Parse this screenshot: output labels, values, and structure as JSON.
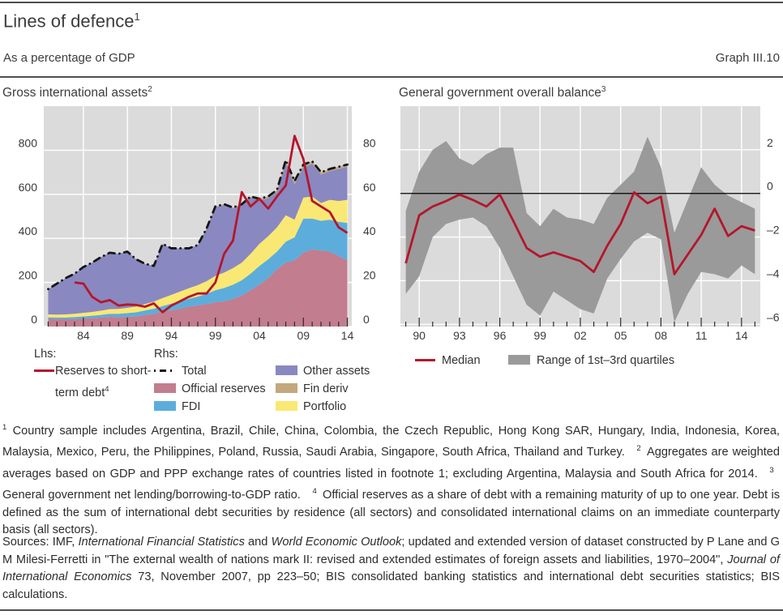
{
  "header": {
    "title": "Lines of defence",
    "title_sup": "1",
    "subtitle": "As a percentage of GDP",
    "graph_label": "Graph III.10"
  },
  "style_colors": {
    "plot_bg": "#dbdbdb",
    "gridline": "#ffffff",
    "tick": "#2a2a2a",
    "rule": "#4f4f4f",
    "text": "#3a3a3a"
  },
  "legend_left": {
    "lhs_header": "Lhs:",
    "lhs_item": {
      "label": "Reserves to short-term debt",
      "sup": "4"
    },
    "rhs_header": "Rhs:",
    "col1": [
      {
        "label": "Total"
      },
      {
        "label": "Official reserves"
      },
      {
        "label": "FDI"
      }
    ],
    "col2": [
      {
        "label": "Other assets"
      },
      {
        "label": "Fin deriv"
      },
      {
        "label": "Portfolio"
      }
    ]
  },
  "legend_right": {
    "median_label": "Median",
    "band_label": "Range of 1st–3rd quartiles"
  },
  "footnotes": {
    "segments": [
      {
        "t": "1",
        "sup": true
      },
      {
        "t": " Country sample includes Argentina, Brazil, Chile, China, Colombia, the Czech Republic, Hong Kong SAR, Hungary, India, Indonesia, Korea, Malaysia, Mexico, Peru, the Philippines, Poland, Russia, Saudi Arabia, Singapore, South Africa, Thailand and Turkey. "
      },
      {
        "t": "2",
        "sup": true
      },
      {
        "t": " Aggregates are weighted averages based on GDP and PPP exchange rates of countries listed in footnote 1; excluding Argentina, Malaysia and South Africa for 2014. "
      },
      {
        "t": "3",
        "sup": true
      },
      {
        "t": " General government net lending/borrowing-to-GDP ratio. "
      },
      {
        "t": "4",
        "sup": true
      },
      {
        "t": " Official reserves as a share of debt with a remaining maturity of up to one year. Debt is defined as the sum of international debt securities by residence (all sectors) and consolidated international claims on an immediate counterparty basis (all sectors)."
      }
    ]
  },
  "sources": {
    "segments": [
      {
        "t": "Sources: IMF, "
      },
      {
        "t": "International Financial Statistics",
        "i": true
      },
      {
        "t": " and "
      },
      {
        "t": "World Economic Outlook",
        "i": true
      },
      {
        "t": "; updated and extended version of dataset constructed by P Lane and G M Milesi-Ferretti in \"The external wealth of nations mark II: revised and extended estimates of foreign assets and liabilities, 1970–2004\", "
      },
      {
        "t": "Journal of International Economics",
        "i": true
      },
      {
        "t": " 73, November 2007, pp 223–50; BIS consolidated banking statistics and international debt securities statistics; BIS calculations."
      }
    ]
  },
  "chart_data": [
    {
      "type": "area",
      "title": "Gross international assets",
      "title_sup": "2",
      "stacked": true,
      "years": [
        1980,
        1981,
        1982,
        1983,
        1984,
        1985,
        1986,
        1987,
        1988,
        1989,
        1990,
        1991,
        1992,
        1993,
        1994,
        1995,
        1996,
        1997,
        1998,
        1999,
        2000,
        2001,
        2002,
        2003,
        2004,
        2005,
        2006,
        2007,
        2008,
        2009,
        2010,
        2011,
        2012,
        2013,
        2014
      ],
      "series": [
        {
          "name": "Official reserves",
          "color": "#c27d8f",
          "axis": "rhs",
          "values": [
            3.5,
            3.4,
            3.3,
            3.4,
            3.6,
            3.8,
            4.1,
            4.4,
            4.3,
            4.4,
            4.6,
            5.2,
            5.8,
            6.6,
            7.4,
            8.2,
            9,
            9.6,
            10.2,
            11,
            11.5,
            12.5,
            14,
            16.5,
            19,
            22,
            26,
            29,
            30,
            33.5,
            35,
            34.5,
            34,
            32,
            30
          ]
        },
        {
          "name": "FDI",
          "color": "#5caddc",
          "axis": "rhs",
          "values": [
            0.7,
            0.7,
            0.8,
            0.9,
            1,
            1.1,
            1.2,
            1.4,
            1.5,
            1.7,
            1.9,
            2.1,
            2.3,
            2.7,
            3,
            3.3,
            3.6,
            4,
            4.6,
            5.5,
            6,
            6.5,
            7,
            7.5,
            8.5,
            8.5,
            8,
            9.5,
            10.5,
            15.5,
            14,
            13.5,
            14.5,
            15.5,
            17
          ]
        },
        {
          "name": "Portfolio",
          "color": "#fae874",
          "axis": "rhs",
          "values": [
            1.3,
            1.3,
            1.4,
            1.5,
            1.6,
            1.7,
            1.9,
            2.1,
            2.2,
            2.4,
            2.6,
            2.9,
            3.2,
            3.6,
            4,
            4.4,
            4.8,
            5.2,
            5.8,
            6.5,
            7,
            7.5,
            8,
            9,
            10,
            10.5,
            11,
            12,
            8,
            9.5,
            10,
            8,
            9,
            9.5,
            10.5
          ]
        },
        {
          "name": "Other assets",
          "color": "#8a88c0",
          "axis": "rhs",
          "values": [
            11.5,
            14.1,
            16.5,
            18.2,
            20.8,
            22.4,
            24.3,
            25.6,
            25,
            25.5,
            21.4,
            18.3,
            16.2,
            24.6,
            21.1,
            19.6,
            18.1,
            18.2,
            23.7,
            31.2,
            30.6,
            27.1,
            26,
            25.5,
            19.9,
            17.2,
            16,
            23.5,
            16,
            13.8,
            14.8,
            13,
            13,
            14.5,
            15
          ]
        },
        {
          "name": "Fin deriv",
          "color": "#c2a87c",
          "axis": "rhs",
          "values": [
            0,
            0,
            0,
            0,
            0,
            0,
            0,
            0,
            0,
            0,
            0,
            0,
            0,
            0,
            0,
            0,
            0,
            0,
            0.2,
            0.3,
            0.4,
            0.4,
            0.5,
            0.5,
            0.6,
            0.8,
            1,
            1.5,
            1.5,
            1.2,
            1.2,
            1,
            1,
            1,
            1
          ]
        }
      ],
      "total": {
        "name": "Total",
        "style": "dashed",
        "color": "#161616",
        "axis": "rhs",
        "values": [
          17,
          19.5,
          22,
          24,
          27,
          29,
          31.5,
          33.5,
          33,
          34,
          30.5,
          28.5,
          27.5,
          37.5,
          35.5,
          35.5,
          35.5,
          37,
          44.5,
          54.5,
          55.5,
          54,
          55.5,
          59,
          58,
          59,
          62,
          75.5,
          66,
          73.5,
          75,
          70,
          71.5,
          72.5,
          73.5
        ]
      },
      "line": {
        "name": "Reserves to short-term debt",
        "sup": "4",
        "color": "#b4162c",
        "axis": "lhs",
        "years": [
          1983,
          1984,
          1985,
          1986,
          1987,
          1988,
          1989,
          1990,
          1991,
          1992,
          1993,
          1994,
          1995,
          1996,
          1997,
          1998,
          1999,
          2000,
          2001,
          2002,
          2003,
          2004,
          2005,
          2006,
          2007,
          2008,
          2009,
          2010,
          2011,
          2012,
          2013,
          2014
        ],
        "values": [
          200,
          195,
          135,
          110,
          120,
          95,
          100,
          98,
          90,
          105,
          65,
          95,
          115,
          135,
          150,
          150,
          200,
          330,
          390,
          610,
          545,
          580,
          535,
          590,
          640,
          865,
          760,
          570,
          545,
          520,
          450,
          425
        ]
      },
      "axes": {
        "lhs": {
          "tick_values": [
            0,
            200,
            400,
            600,
            800
          ],
          "tick_labels": [
            "0",
            "200",
            "400",
            "600",
            "800"
          ],
          "range": [
            0,
            1000
          ]
        },
        "rhs": {
          "tick_values": [
            0,
            20,
            40,
            60,
            80
          ],
          "tick_labels": [
            "0",
            "20",
            "40",
            "60",
            "80"
          ],
          "range": [
            0,
            100
          ]
        },
        "x": {
          "range": [
            1979.5,
            2014.5
          ],
          "labeled_years": [
            1984,
            1989,
            1994,
            1999,
            2004,
            2009,
            2014
          ],
          "tick_labels": [
            "84",
            "89",
            "94",
            "99",
            "04",
            "09",
            "14"
          ]
        }
      },
      "grid": "on"
    },
    {
      "type": "band-line",
      "title": "General government overall balance",
      "title_sup": "3",
      "years": [
        1989,
        1990,
        1991,
        1992,
        1993,
        1994,
        1995,
        1996,
        1997,
        1998,
        1999,
        2000,
        2001,
        2002,
        2003,
        2004,
        2005,
        2006,
        2007,
        2008,
        2009,
        2010,
        2011,
        2012,
        2013,
        2014,
        2015
      ],
      "median": [
        -3.2,
        -1,
        -0.6,
        -0.35,
        -0.05,
        -0.3,
        -0.6,
        -0.05,
        -1.25,
        -2.5,
        -2.9,
        -2.7,
        -2.9,
        -3.1,
        -3.6,
        -2.4,
        -1.4,
        0.05,
        -0.45,
        -0.15,
        -3.7,
        -2.8,
        -1.9,
        -0.7,
        -1.95,
        -1.5,
        -1.7
      ],
      "band_upper": [
        -0.8,
        1,
        2,
        2.4,
        1.6,
        1.3,
        1.8,
        2.1,
        2.1,
        -0.9,
        -1.5,
        -0.7,
        -1.1,
        -1.2,
        -1.4,
        -0.2,
        0.4,
        1,
        2.6,
        1.2,
        -1.8,
        -0.3,
        1.2,
        0.4,
        -0.1,
        -0.4,
        -0.7
      ],
      "band_lower": [
        -4.6,
        -3.8,
        -2,
        -1.4,
        -1.2,
        -1.1,
        -1.5,
        -2.5,
        -3.8,
        -5.1,
        -5.6,
        -4.5,
        -4.9,
        -5.3,
        -5.5,
        -3.9,
        -3,
        -2.2,
        -1.8,
        -2.1,
        -5.9,
        -4.6,
        -3.6,
        -3.7,
        -3.9,
        -3.3,
        -3.7
      ],
      "median_color": "#b4162c",
      "band_color": "#9a9a9a",
      "zero_line": true,
      "axes": {
        "rhs": {
          "tick_values": [
            2,
            0,
            -2,
            -4,
            -6
          ],
          "tick_labels": [
            "2",
            "0",
            "–2",
            "–4",
            "–6"
          ],
          "range": [
            -6.1,
            4
          ]
        },
        "x": {
          "range": [
            1988.6,
            2015.4
          ],
          "labeled_years": [
            1990,
            1993,
            1996,
            1999,
            2002,
            2005,
            2008,
            2011,
            2014
          ],
          "tick_labels": [
            "90",
            "93",
            "96",
            "99",
            "02",
            "05",
            "08",
            "11",
            "14"
          ]
        }
      },
      "grid": "on",
      "legend_position": "bottom"
    }
  ]
}
